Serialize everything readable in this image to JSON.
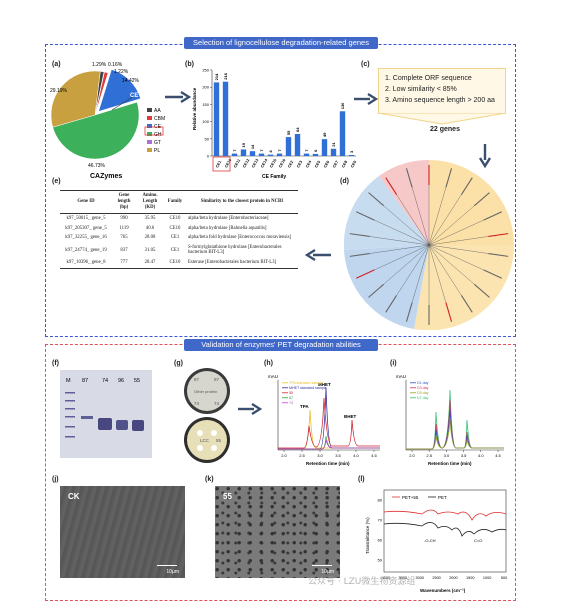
{
  "sections": {
    "top_title": "Selection of lignocellulose degradation-related genes",
    "bottom_title": "Validation of enzymes' PET degradation abilities"
  },
  "panels": {
    "a": "(a)",
    "b": "(b)",
    "c": "(c)",
    "d": "(d)",
    "e": "(e)",
    "f": "(f)",
    "g": "(g)",
    "h": "(h)",
    "i": "(i)",
    "j": "(j)",
    "k": "(k)",
    "l": "(l)"
  },
  "panel_a": {
    "caption": "CAZymes",
    "slice_labels": [
      "1.29%",
      "0.16%",
      "1.22%",
      "14.42%",
      "46.73%",
      "29.19%"
    ],
    "inner_label": "CE",
    "legend": [
      "AA",
      "CBM",
      "CE",
      "GH",
      "GT",
      "PL"
    ],
    "colors": [
      "#444444",
      "#e23a3a",
      "#2f6fd6",
      "#3cb05a",
      "#b070d0",
      "#c8a040"
    ]
  },
  "chart_data": {
    "type": "bar",
    "title": "",
    "xlabel": "CE Family",
    "ylabel": "Relative abundance",
    "categories": [
      "CE1",
      "CE10",
      "CE11",
      "CE12",
      "CE13",
      "CE14",
      "CE15",
      "CE16",
      "CE2",
      "CE3",
      "CE4",
      "CE5",
      "CE6",
      "CE7",
      "CE8",
      "CE9"
    ],
    "values": [
      214,
      216,
      7,
      19,
      14,
      7,
      4,
      7,
      55,
      64,
      7,
      6,
      49,
      21,
      130,
      3
    ],
    "value_labels": [
      "214",
      "216",
      "7",
      "19",
      "14",
      "7",
      "4",
      "7",
      "55",
      "64",
      "7",
      "6",
      "49",
      "21",
      "130",
      "3"
    ],
    "ylim": [
      0,
      250
    ],
    "yticks": [
      "0",
      "50",
      "100",
      "150",
      "200",
      "250"
    ],
    "highlighted": [
      "CE1",
      "CE10"
    ]
  },
  "panel_c": {
    "criteria": [
      "1. Complete ORF sequence",
      "2. Low similarity < 85%",
      "3. Amino sequence length > 200 aa"
    ],
    "result": "22 genes"
  },
  "panel_e": {
    "headers": [
      "Gene ID",
      "Gene length (bp)",
      "Amino. Length (KD)",
      "Family",
      "Similarity to the closest protein in NCBI"
    ],
    "rows": [
      [
        "k97_50015_ gene_5",
        "990",
        "35.95",
        "CE10",
        "alpha/beta hydrolase [Enterobacteriaceae]"
      ],
      [
        "k97_205307_ gene_5",
        "1119",
        "40.6",
        "CE10",
        "alpha/beta hydrolase [Rahnella aquatilis]"
      ],
      [
        "k97_32255_ gene_16",
        "765",
        "28.08",
        "CE1",
        "alpha/beta fold hydrolase [Enterococcus moraviensis]"
      ],
      [
        "k97_24774_ gene_19",
        "837",
        "31.05",
        "CE1",
        "S-formylglutathione hydrolase [Enterobacterales bacterium BIT-L3]"
      ],
      [
        "k97_10396_ gene_8",
        "777",
        "28.47",
        "CE10",
        "Esterase [Enterobacterales bacterium BIT-L3]"
      ]
    ]
  },
  "panel_f": {
    "lanes": [
      "M",
      "87",
      "74",
      "96",
      "55"
    ]
  },
  "panel_g": {
    "top_labels": [
      "87",
      "97",
      "74",
      "74"
    ],
    "top_center": "Other protein",
    "bottom_center": "LCC",
    "bottom_right": "55"
  },
  "panel_h": {
    "ylabel": "mAU",
    "xlabel": "Retention time (min)",
    "xticks": [
      "2.0",
      "2.5",
      "3.0",
      "3.5",
      "4.0",
      "4.5"
    ],
    "peaks": [
      "TPA",
      "MHET",
      "BHET"
    ],
    "legend": [
      "TPA standard sample",
      "MHET standard sample",
      "55",
      "87",
      "74"
    ]
  },
  "panel_i": {
    "ylabel": "mAU",
    "xlabel": "Retention time (min)",
    "xticks": [
      "2.0",
      "2.5",
      "3.0",
      "3.5",
      "4.0",
      "4.5"
    ],
    "legend": [
      "D1 day",
      "D3 day",
      "D5 day",
      "D7 day"
    ]
  },
  "panel_j": {
    "label": "CK",
    "scale": "10μm"
  },
  "panel_k": {
    "label": "55",
    "scale": "10μm"
  },
  "panel_l": {
    "ylabel": "Transmittance (%)",
    "xlabel": "Wavenumbers (cm⁻¹)",
    "legend": [
      "PET+55",
      "PET"
    ],
    "annotations": [
      "-O-CH",
      "C=O"
    ],
    "yticks": [
      "80",
      "70",
      "60",
      "50"
    ],
    "xticks": [
      "4000",
      "3500",
      "3000",
      "2500",
      "2000",
      "1500",
      "1000",
      "500"
    ]
  },
  "watermark": "公众号 · LZU微生物资源组"
}
